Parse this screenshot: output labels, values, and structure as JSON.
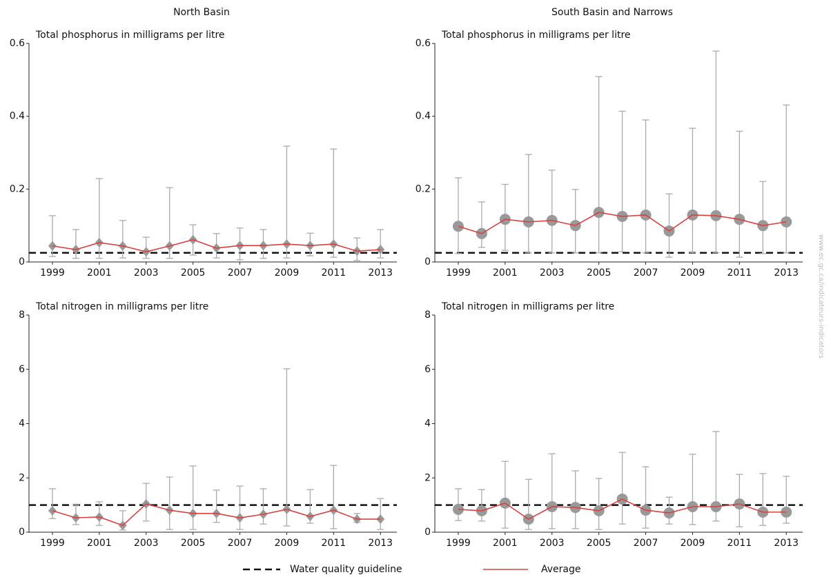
{
  "columns": [
    "North Basin",
    "South Basin and Narrows"
  ],
  "legend": {
    "guideline": "Water quality guideline",
    "average": "Average"
  },
  "watermark": "www.ec.gc.ca/indicateurs-indicators",
  "chart_data": [
    {
      "type": "line",
      "subtitle": "Total phosphorus in milligrams per litre",
      "marker": "diamond",
      "x": [
        1999,
        2000,
        2001,
        2002,
        2003,
        2004,
        2005,
        2006,
        2007,
        2008,
        2009,
        2010,
        2011,
        2012,
        2013
      ],
      "series": [
        {
          "color": "#d9403f",
          "marker_color": "#999999",
          "values": [
            0.044,
            0.034,
            0.053,
            0.044,
            0.028,
            0.044,
            0.061,
            0.038,
            0.045,
            0.045,
            0.049,
            0.045,
            0.049,
            0.03,
            0.034
          ],
          "low": [
            0.015,
            0.01,
            0.01,
            0.011,
            0.01,
            0.01,
            0.019,
            0.011,
            0.006,
            0.01,
            0.011,
            0.017,
            0.013,
            0.004,
            0.011
          ],
          "high": [
            0.127,
            0.089,
            0.229,
            0.114,
            0.068,
            0.204,
            0.102,
            0.078,
            0.093,
            0.089,
            0.318,
            0.079,
            0.31,
            0.066,
            0.089
          ]
        }
      ],
      "guideline": 0.025,
      "xlim": [
        1998,
        2013.7
      ],
      "xticks": [
        1999,
        2001,
        2003,
        2005,
        2007,
        2009,
        2011,
        2013
      ],
      "ylim": [
        0,
        0.6
      ],
      "yticks": [
        0,
        0.2,
        0.4,
        0.6
      ]
    },
    {
      "type": "line",
      "subtitle": "Total phosphorus in milligrams per litre",
      "marker": "circle",
      "x": [
        1999,
        2000,
        2001,
        2002,
        2003,
        2004,
        2005,
        2006,
        2007,
        2008,
        2009,
        2010,
        2011,
        2012,
        2013
      ],
      "series": [
        {
          "color": "#d9403f",
          "marker_color": "#999999",
          "values": [
            0.098,
            0.078,
            0.117,
            0.11,
            0.114,
            0.1,
            0.136,
            0.125,
            0.129,
            0.085,
            0.129,
            0.127,
            0.117,
            0.1,
            0.11
          ],
          "low": [
            0.023,
            0.04,
            0.032,
            0.025,
            0.025,
            0.025,
            0.025,
            0.028,
            0.025,
            0.013,
            0.025,
            0.025,
            0.013,
            0.023,
            0.025
          ],
          "high": [
            0.231,
            0.165,
            0.213,
            0.295,
            0.252,
            0.199,
            0.509,
            0.414,
            0.39,
            0.187,
            0.367,
            0.579,
            0.359,
            0.221,
            0.431
          ]
        }
      ],
      "guideline": 0.025,
      "xlim": [
        1998,
        2013.7
      ],
      "xticks": [
        1999,
        2001,
        2003,
        2005,
        2007,
        2009,
        2011,
        2013
      ],
      "ylim": [
        0,
        0.6
      ],
      "yticks": [
        0,
        0.2,
        0.4,
        0.6
      ]
    },
    {
      "type": "line",
      "subtitle": "Total nitrogen in milligrams per litre",
      "marker": "diamond",
      "x": [
        1999,
        2000,
        2001,
        2002,
        2003,
        2004,
        2005,
        2006,
        2007,
        2008,
        2009,
        2010,
        2011,
        2012,
        2013
      ],
      "series": [
        {
          "color": "#d9403f",
          "marker_color": "#999999",
          "values": [
            0.79,
            0.53,
            0.56,
            0.25,
            1.04,
            0.81,
            0.69,
            0.69,
            0.53,
            0.66,
            0.84,
            0.58,
            0.81,
            0.48,
            0.48
          ],
          "low": [
            0.5,
            0.28,
            0.25,
            0.08,
            0.41,
            0.1,
            0.1,
            0.36,
            0.1,
            0.3,
            0.23,
            0.33,
            0.13,
            0.36,
            0.1
          ],
          "high": [
            1.6,
            1.0,
            1.12,
            0.79,
            1.8,
            2.03,
            2.44,
            1.55,
            1.7,
            1.6,
            6.02,
            1.57,
            2.46,
            0.69,
            1.24
          ]
        }
      ],
      "guideline": 1,
      "xlim": [
        1998,
        2013.7
      ],
      "xticks": [
        1999,
        2001,
        2003,
        2005,
        2007,
        2009,
        2011,
        2013
      ],
      "ylim": [
        0,
        8
      ],
      "yticks": [
        0,
        2,
        4,
        6,
        8
      ]
    },
    {
      "type": "line",
      "subtitle": "Total nitrogen in milligrams per litre",
      "marker": "circle",
      "x": [
        1999,
        2000,
        2001,
        2002,
        2003,
        2004,
        2005,
        2006,
        2007,
        2008,
        2009,
        2010,
        2011,
        2012,
        2013
      ],
      "series": [
        {
          "color": "#d9403f",
          "marker_color": "#999999",
          "values": [
            0.84,
            0.79,
            1.07,
            0.48,
            0.94,
            0.91,
            0.79,
            1.22,
            0.81,
            0.71,
            0.94,
            0.94,
            1.04,
            0.74,
            0.74
          ],
          "low": [
            0.43,
            0.41,
            0.15,
            0.1,
            0.13,
            0.13,
            0.1,
            0.3,
            0.15,
            0.3,
            0.28,
            0.41,
            0.2,
            0.25,
            0.33
          ],
          "high": [
            1.6,
            1.57,
            2.61,
            1.95,
            2.89,
            2.26,
            1.98,
            2.94,
            2.41,
            1.29,
            2.87,
            3.71,
            2.13,
            2.16,
            2.06
          ]
        }
      ],
      "guideline": 1,
      "xlim": [
        1998,
        2013.7
      ],
      "xticks": [
        1999,
        2001,
        2003,
        2005,
        2007,
        2009,
        2011,
        2013
      ],
      "ylim": [
        0,
        8
      ],
      "yticks": [
        0,
        2,
        4,
        6,
        8
      ]
    }
  ]
}
